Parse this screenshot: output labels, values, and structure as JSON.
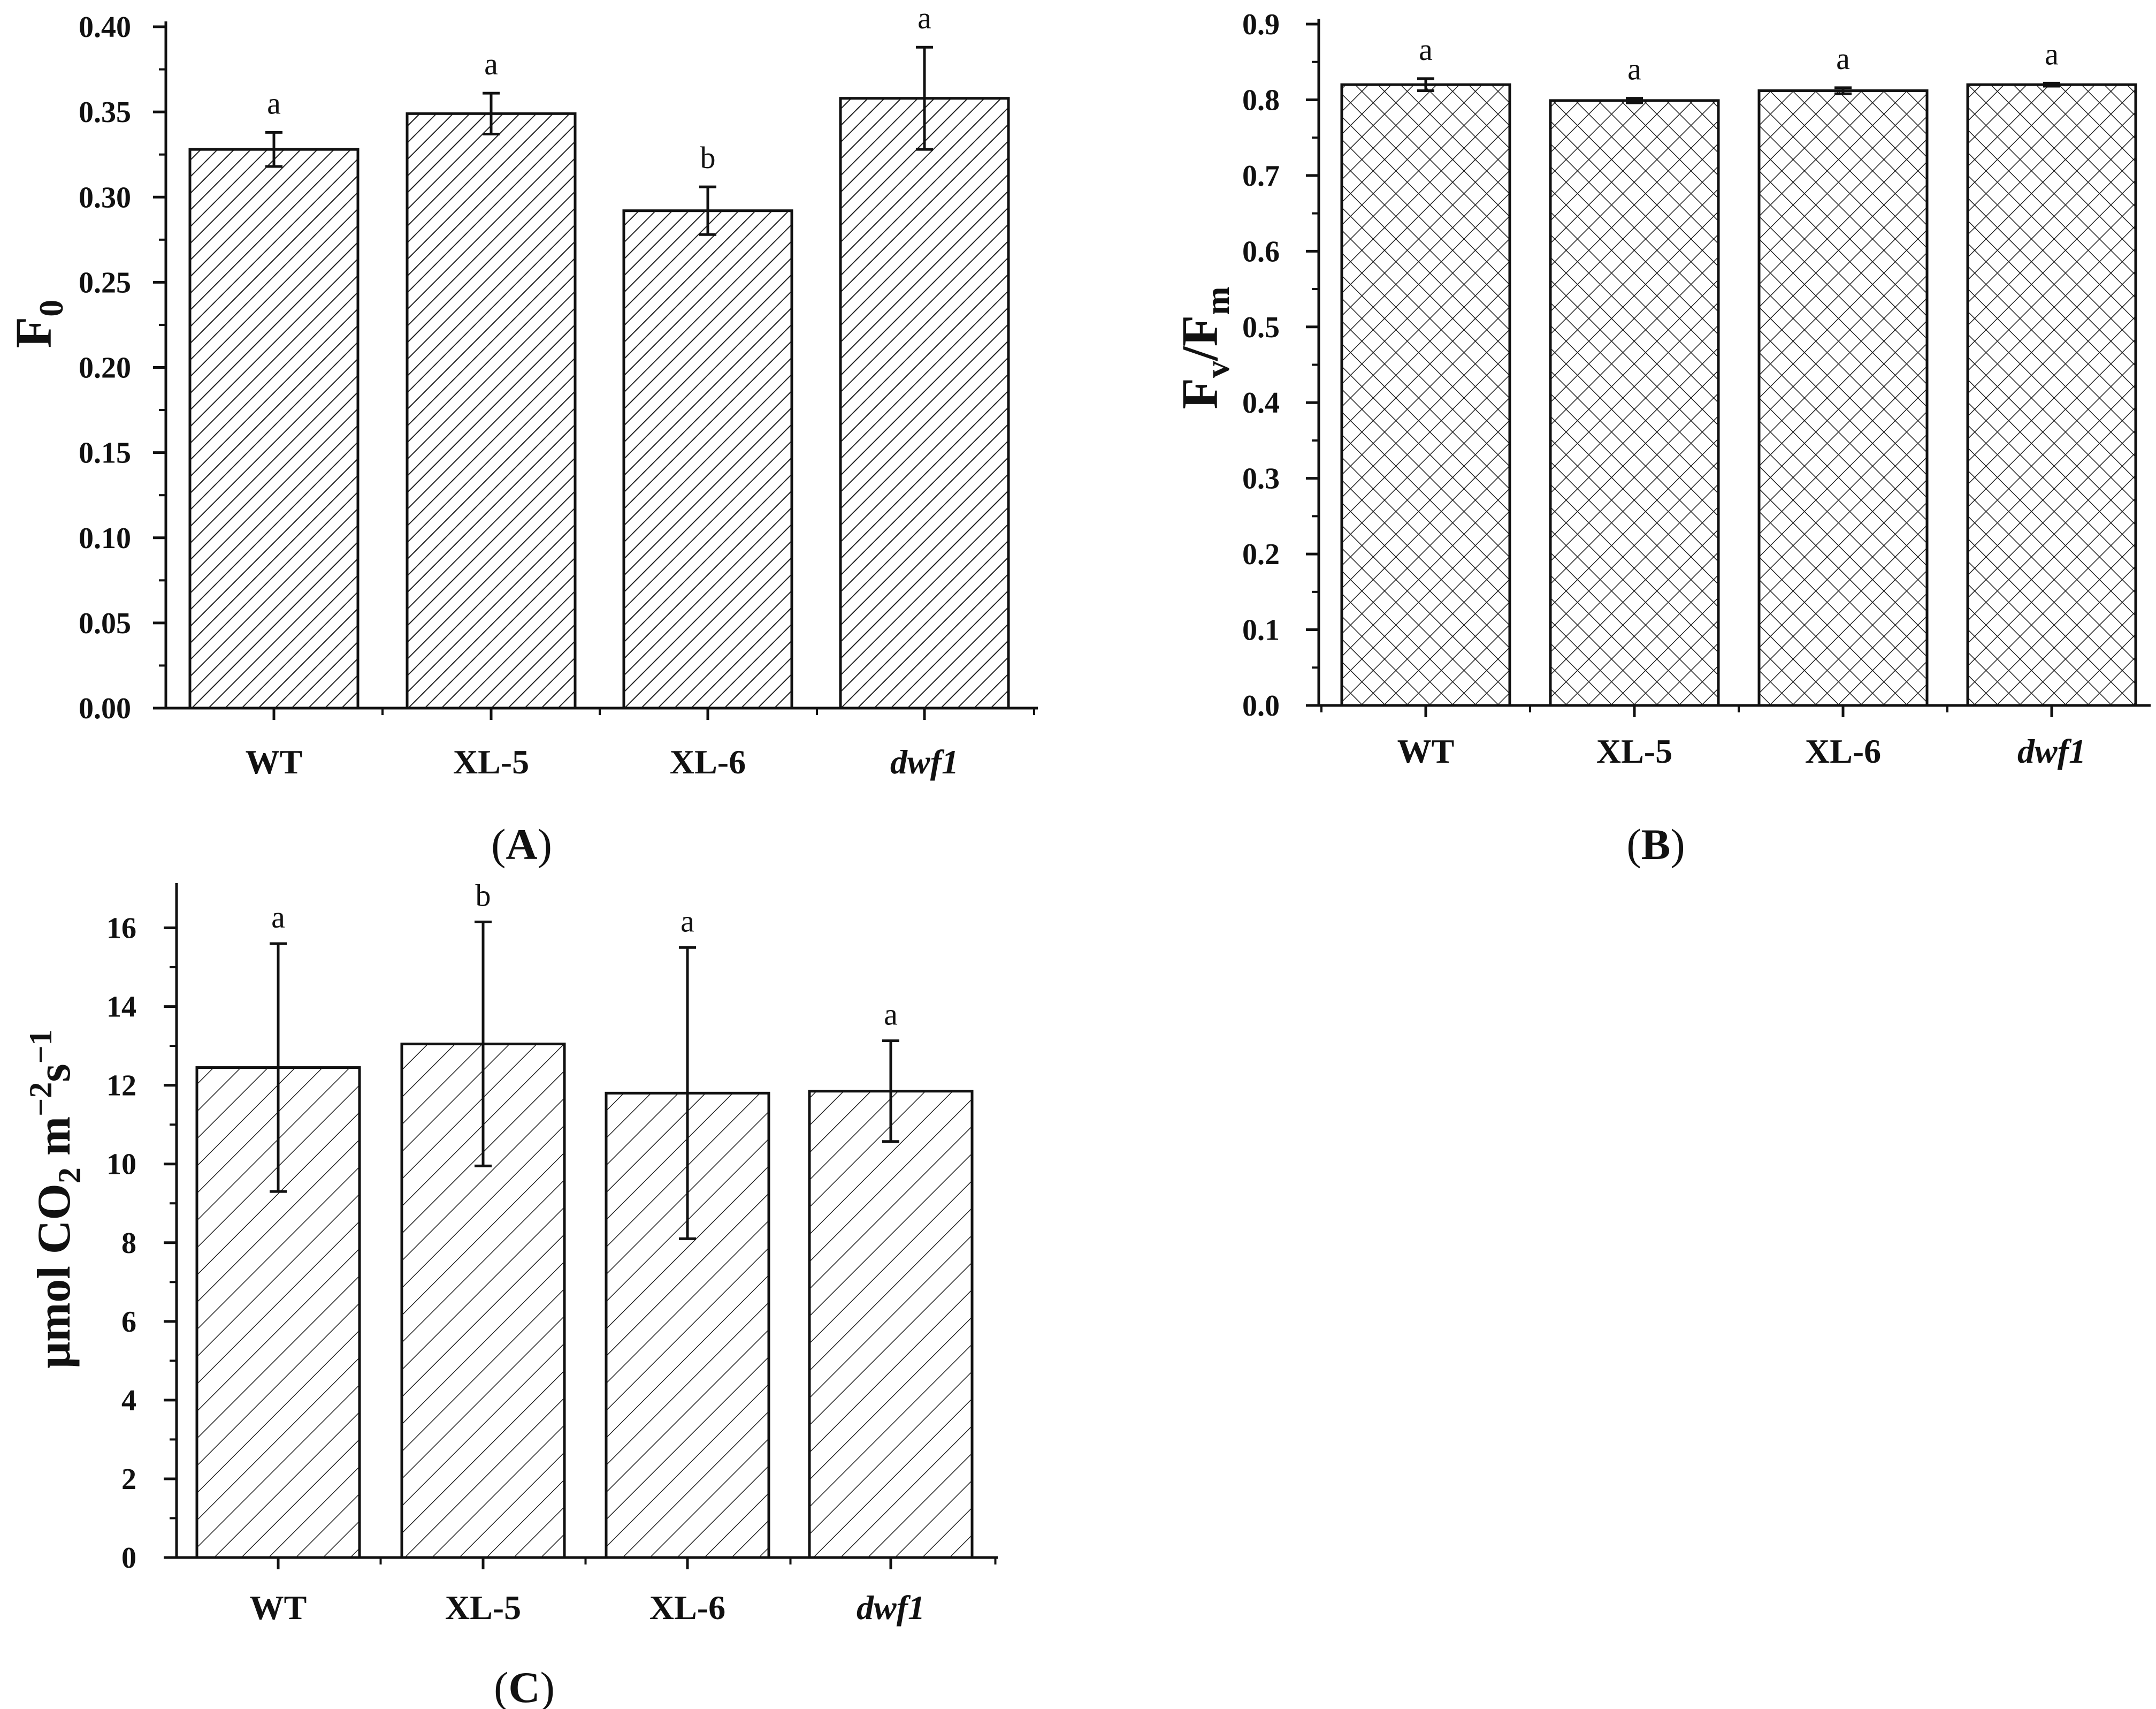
{
  "colors": {
    "ink": "#111111",
    "background": "#ffffff"
  },
  "chart_data": [
    {
      "type": "bar",
      "panel": "(A)",
      "panel_bold": "A",
      "ylabel": "F0",
      "ylabel_base": "F",
      "ylabel_sub": "0",
      "categories": [
        "WT",
        "XL-5",
        "XL-6",
        "dwf1"
      ],
      "italic_categories": [
        "dwf1"
      ],
      "values": [
        0.328,
        0.349,
        0.292,
        0.358
      ],
      "errors": [
        0.01,
        0.012,
        0.014,
        0.03
      ],
      "letters": [
        "a",
        "a",
        "b",
        "a"
      ],
      "ylim": [
        0.0,
        0.4
      ],
      "yticks": [
        "0.00",
        "0.05",
        "0.10",
        "0.15",
        "0.20",
        "0.25",
        "0.30",
        "0.35",
        "0.40"
      ],
      "pattern": "diagonal-fine"
    },
    {
      "type": "bar",
      "panel": "(B)",
      "panel_bold": "B",
      "ylabel": "Fv/Fm",
      "ylabel_parts": [
        "F",
        "v",
        "/F",
        "m"
      ],
      "categories": [
        "WT",
        "XL-5",
        "XL-6",
        "dwf1"
      ],
      "italic_categories": [
        "dwf1"
      ],
      "values": [
        0.82,
        0.799,
        0.812,
        0.82
      ],
      "errors": [
        0.008,
        0.003,
        0.004,
        0.002
      ],
      "letters": [
        "a",
        "a",
        "a",
        "a"
      ],
      "ylim": [
        0.0,
        0.9
      ],
      "yticks": [
        "0.0",
        "0.1",
        "0.2",
        "0.3",
        "0.4",
        "0.5",
        "0.6",
        "0.7",
        "0.8",
        "0.9"
      ],
      "pattern": "crosshatch"
    },
    {
      "type": "bar",
      "panel": "(C)",
      "panel_bold": "C",
      "ylabel": "μmol CO2 m−2s−1",
      "ylabel_parts": [
        "μmol CO",
        "2",
        " m",
        "−2",
        "s",
        "−1"
      ],
      "categories": [
        "WT",
        "XL-5",
        "XL-6",
        "dwf1"
      ],
      "italic_categories": [
        "dwf1"
      ],
      "values": [
        12.45,
        13.05,
        11.8,
        11.85
      ],
      "errors": [
        3.15,
        3.1,
        3.7,
        1.28
      ],
      "letters": [
        "a",
        "b",
        "a",
        "a"
      ],
      "ylim": [
        0,
        17
      ],
      "yticks": [
        "0",
        "2",
        "4",
        "6",
        "8",
        "10",
        "12",
        "14",
        "16"
      ],
      "pattern": "diagonal-wide"
    }
  ]
}
